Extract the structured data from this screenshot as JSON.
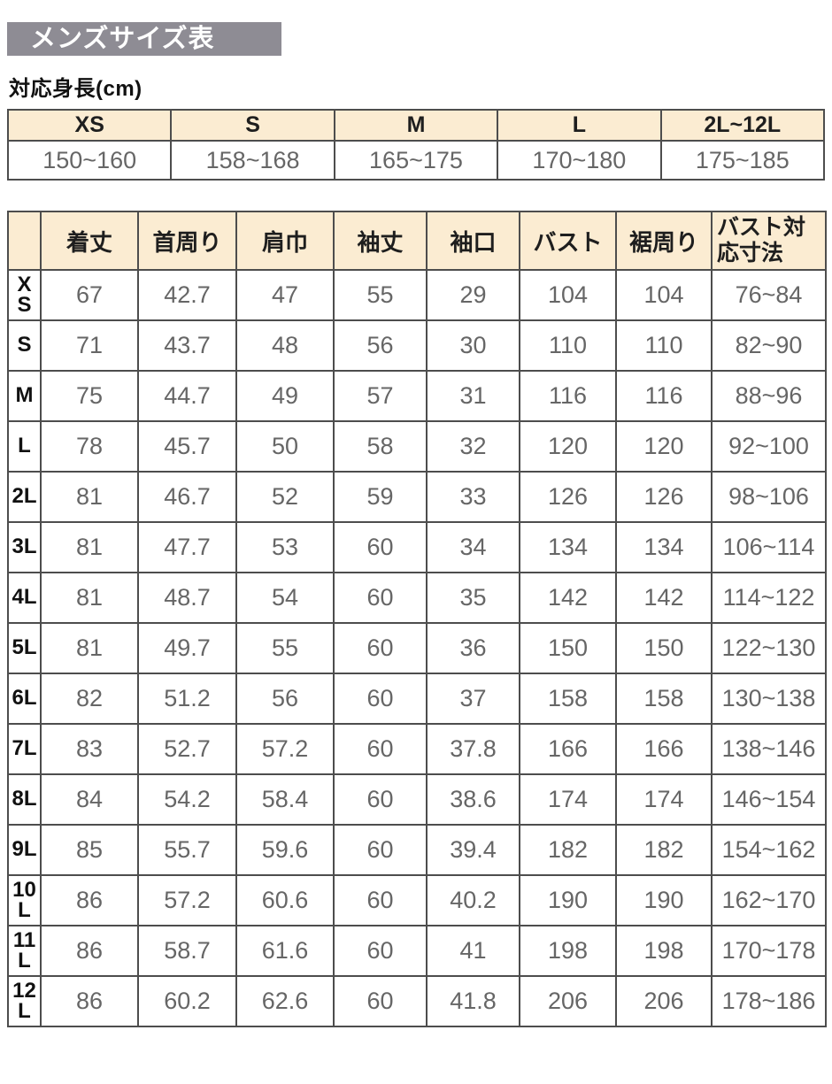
{
  "colors": {
    "title_bar_bg": "#8e8c94",
    "header_bg": "#fbecd2",
    "border": "#4d4d4d",
    "value_text": "#666666"
  },
  "header": {
    "title": "メンズサイズ表",
    "subtitle": "対応身長(cm)"
  },
  "height_table": {
    "columns": [
      "XS",
      "S",
      "M",
      "L",
      "2L~12L"
    ],
    "values": [
      "150~160",
      "158~168",
      "165~175",
      "170~180",
      "175~185"
    ]
  },
  "size_table": {
    "column_headers": [
      "着丈",
      "首周り",
      "肩巾",
      "袖丈",
      "袖口",
      "バスト",
      "裾周り",
      "バスト対応寸法"
    ],
    "rows": [
      {
        "label": "XS",
        "values": [
          "67",
          "42.7",
          "47",
          "55",
          "29",
          "104",
          "104",
          "76~84"
        ]
      },
      {
        "label": "S",
        "values": [
          "71",
          "43.7",
          "48",
          "56",
          "30",
          "110",
          "110",
          "82~90"
        ]
      },
      {
        "label": "M",
        "values": [
          "75",
          "44.7",
          "49",
          "57",
          "31",
          "116",
          "116",
          "88~96"
        ]
      },
      {
        "label": "L",
        "values": [
          "78",
          "45.7",
          "50",
          "58",
          "32",
          "120",
          "120",
          "92~100"
        ]
      },
      {
        "label": "2L",
        "values": [
          "81",
          "46.7",
          "52",
          "59",
          "33",
          "126",
          "126",
          "98~106"
        ]
      },
      {
        "label": "3L",
        "values": [
          "81",
          "47.7",
          "53",
          "60",
          "34",
          "134",
          "134",
          "106~114"
        ]
      },
      {
        "label": "4L",
        "values": [
          "81",
          "48.7",
          "54",
          "60",
          "35",
          "142",
          "142",
          "114~122"
        ]
      },
      {
        "label": "5L",
        "values": [
          "81",
          "49.7",
          "55",
          "60",
          "36",
          "150",
          "150",
          "122~130"
        ]
      },
      {
        "label": "6L",
        "values": [
          "82",
          "51.2",
          "56",
          "60",
          "37",
          "158",
          "158",
          "130~138"
        ]
      },
      {
        "label": "7L",
        "values": [
          "83",
          "52.7",
          "57.2",
          "60",
          "37.8",
          "166",
          "166",
          "138~146"
        ]
      },
      {
        "label": "8L",
        "values": [
          "84",
          "54.2",
          "58.4",
          "60",
          "38.6",
          "174",
          "174",
          "146~154"
        ]
      },
      {
        "label": "9L",
        "values": [
          "85",
          "55.7",
          "59.6",
          "60",
          "39.4",
          "182",
          "182",
          "154~162"
        ]
      },
      {
        "label": "10L",
        "values": [
          "86",
          "57.2",
          "60.6",
          "60",
          "40.2",
          "190",
          "190",
          "162~170"
        ]
      },
      {
        "label": "11L",
        "values": [
          "86",
          "58.7",
          "61.6",
          "60",
          "41",
          "198",
          "198",
          "170~178"
        ]
      },
      {
        "label": "12L",
        "values": [
          "86",
          "60.2",
          "62.6",
          "60",
          "41.8",
          "206",
          "206",
          "178~186"
        ]
      }
    ]
  }
}
